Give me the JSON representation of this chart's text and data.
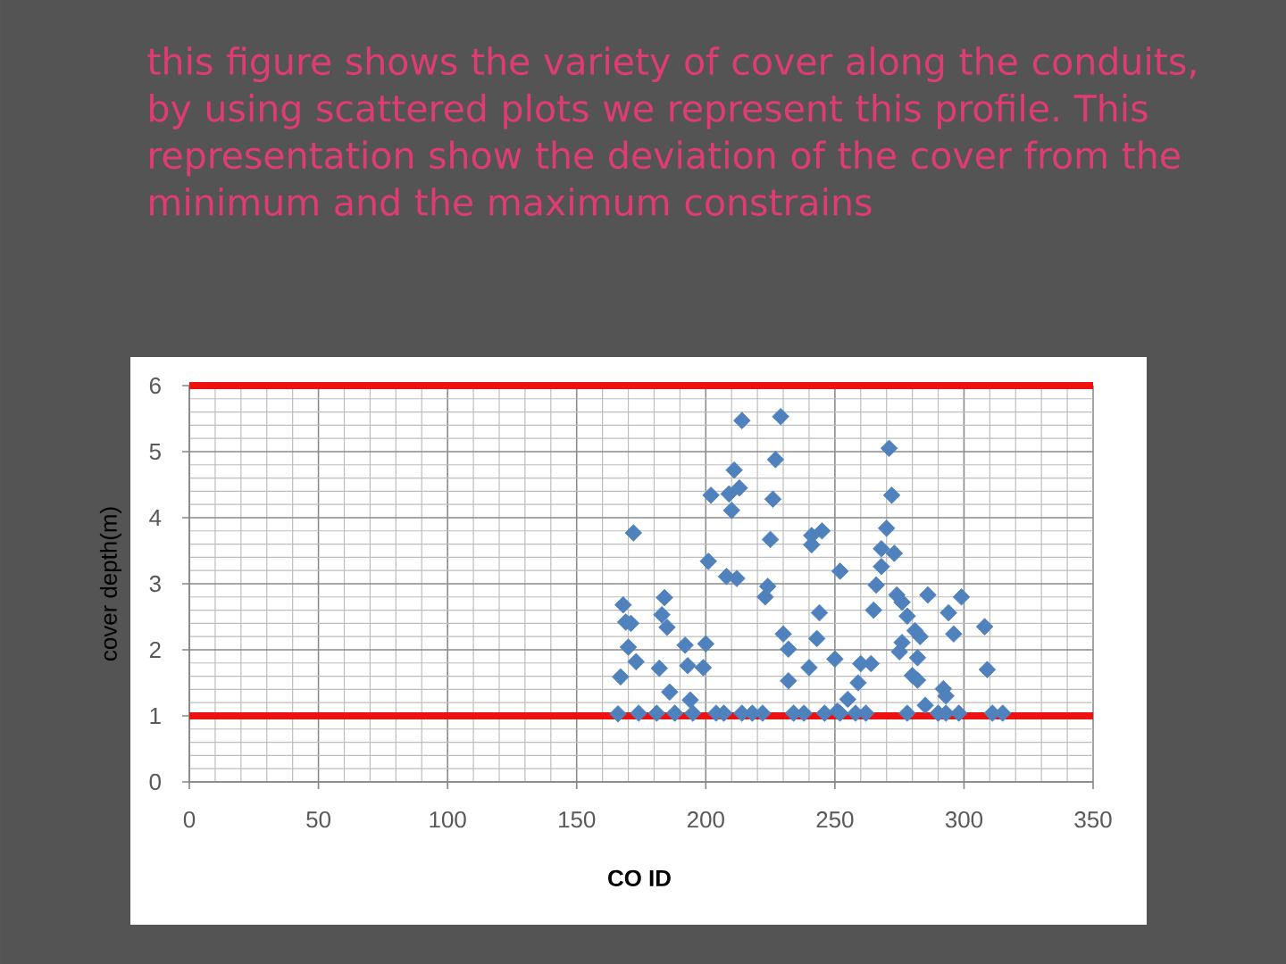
{
  "chart_data": {
    "type": "scatter",
    "title": "this figure shows the variety of cover along the conduits, by using scattered plots we represent this profile. This representation show the deviation of the cover from the minimum and the maximum constrains",
    "xlabel": "CO ID",
    "ylabel": "cover depth(m)",
    "x": [
      166,
      167,
      168,
      169,
      170,
      171,
      172,
      173,
      174,
      181,
      182,
      183,
      184,
      185,
      186,
      188,
      192,
      193,
      194,
      195,
      199,
      200,
      201,
      202,
      204,
      207,
      208,
      209,
      210,
      211,
      212,
      213,
      214,
      214,
      218,
      222,
      223,
      224,
      225,
      226,
      227,
      229,
      230,
      232,
      232,
      234,
      238,
      240,
      241,
      241,
      243,
      244,
      245,
      246,
      250,
      251,
      252,
      252,
      255,
      258,
      259,
      260,
      262,
      264,
      265,
      266,
      268,
      268,
      270,
      271,
      272,
      273,
      274,
      275,
      276,
      276,
      278,
      278,
      280,
      281,
      282,
      282,
      283,
      285,
      286,
      290,
      292,
      293,
      293,
      294,
      296,
      298,
      299,
      308,
      309,
      311,
      315
    ],
    "values": [
      1.03,
      1.59,
      2.68,
      2.42,
      2.04,
      2.4,
      3.77,
      1.82,
      1.04,
      1.04,
      1.72,
      2.53,
      2.79,
      2.34,
      1.36,
      1.04,
      2.07,
      1.76,
      1.24,
      1.04,
      1.73,
      2.09,
      3.34,
      4.34,
      1.04,
      1.04,
      3.11,
      4.36,
      4.11,
      4.72,
      3.08,
      4.45,
      5.47,
      1.04,
      1.04,
      1.04,
      2.8,
      2.96,
      3.67,
      4.28,
      4.88,
      5.53,
      2.24,
      2.01,
      1.53,
      1.04,
      1.04,
      1.73,
      3.73,
      3.59,
      2.17,
      2.56,
      3.8,
      1.04,
      1.86,
      1.07,
      3.19,
      1.04,
      1.25,
      1.04,
      1.5,
      1.79,
      1.04,
      1.79,
      2.6,
      2.98,
      3.53,
      3.26,
      3.84,
      5.05,
      4.34,
      3.46,
      2.83,
      1.97,
      2.72,
      2.11,
      2.51,
      1.04,
      1.61,
      2.29,
      1.88,
      1.54,
      2.2,
      1.16,
      2.83,
      1.04,
      1.41,
      1.3,
      1.04,
      2.56,
      2.24,
      1.04,
      2.8,
      2.35,
      1.7,
      1.04,
      1.04
    ],
    "color": "#4f81bd",
    "marker": "diamond",
    "xlim": [
      0,
      350
    ],
    "xticks": [
      0,
      50,
      100,
      150,
      200,
      250,
      300,
      350
    ],
    "ylim": [
      0,
      6
    ],
    "yticks": [
      0,
      1,
      2,
      3,
      4,
      5,
      6
    ],
    "grid": true,
    "ref_lines": [
      {
        "axis": "y",
        "value": 6,
        "color": "#ee1111"
      },
      {
        "axis": "y",
        "value": 1,
        "color": "#ee1111"
      }
    ]
  }
}
